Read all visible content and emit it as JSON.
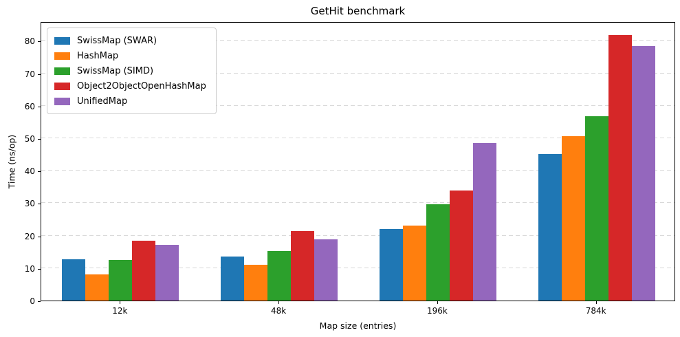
{
  "chart_data": {
    "type": "bar",
    "title": "GetHit benchmark",
    "xlabel": "Map size (entries)",
    "ylabel": "Time (ns/op)",
    "categories": [
      "12k",
      "48k",
      "196k",
      "784k"
    ],
    "series": [
      {
        "name": "SwissMap (SWAR)",
        "color": "#1f77b4",
        "values": [
          12.7,
          13.6,
          22.0,
          45.2
        ]
      },
      {
        "name": "HashMap",
        "color": "#ff7f0e",
        "values": [
          8.1,
          11.0,
          23.1,
          50.7
        ]
      },
      {
        "name": "SwissMap (SIMD)",
        "color": "#2ca02c",
        "values": [
          12.5,
          15.2,
          29.6,
          56.8
        ]
      },
      {
        "name": "Object2ObjectOpenHashMap",
        "color": "#d62728",
        "values": [
          18.4,
          21.4,
          33.8,
          81.8
        ]
      },
      {
        "name": "UnifiedMap",
        "color": "#9467bd",
        "values": [
          17.2,
          18.8,
          48.6,
          78.4
        ]
      }
    ],
    "yticks": [
      0,
      10,
      20,
      30,
      40,
      50,
      60,
      70,
      80
    ],
    "ylim": [
      0,
      86
    ],
    "grid": "horizontal-dashed",
    "legend_position": "upper-left"
  }
}
